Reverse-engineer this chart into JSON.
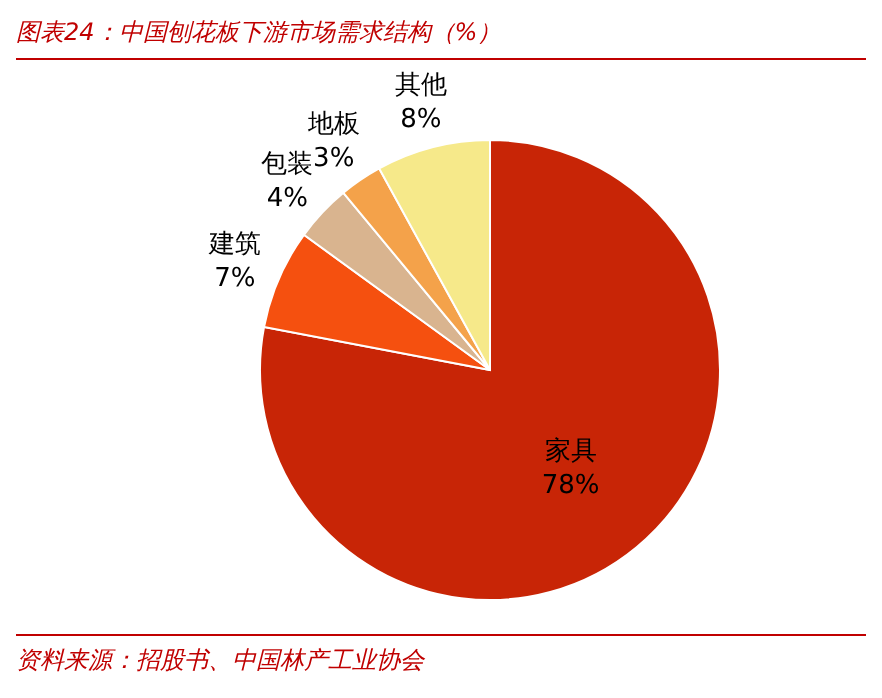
{
  "chart_data": {
    "type": "pie",
    "title": "图表24：中国刨花板下游市场需求结构（%）",
    "categories": [
      "家具",
      "建筑",
      "包装",
      "地板",
      "其他"
    ],
    "values": [
      78,
      7,
      4,
      3,
      8
    ],
    "value_labels": [
      "78%",
      "7%",
      "4%",
      "3%",
      "8%"
    ],
    "colors": [
      "#c82506",
      "#f5500f",
      "#d9b48f",
      "#f4a24a",
      "#f6e98a"
    ],
    "annotations": [
      "资料来源：招股书、中国林产工业协会"
    ]
  }
}
